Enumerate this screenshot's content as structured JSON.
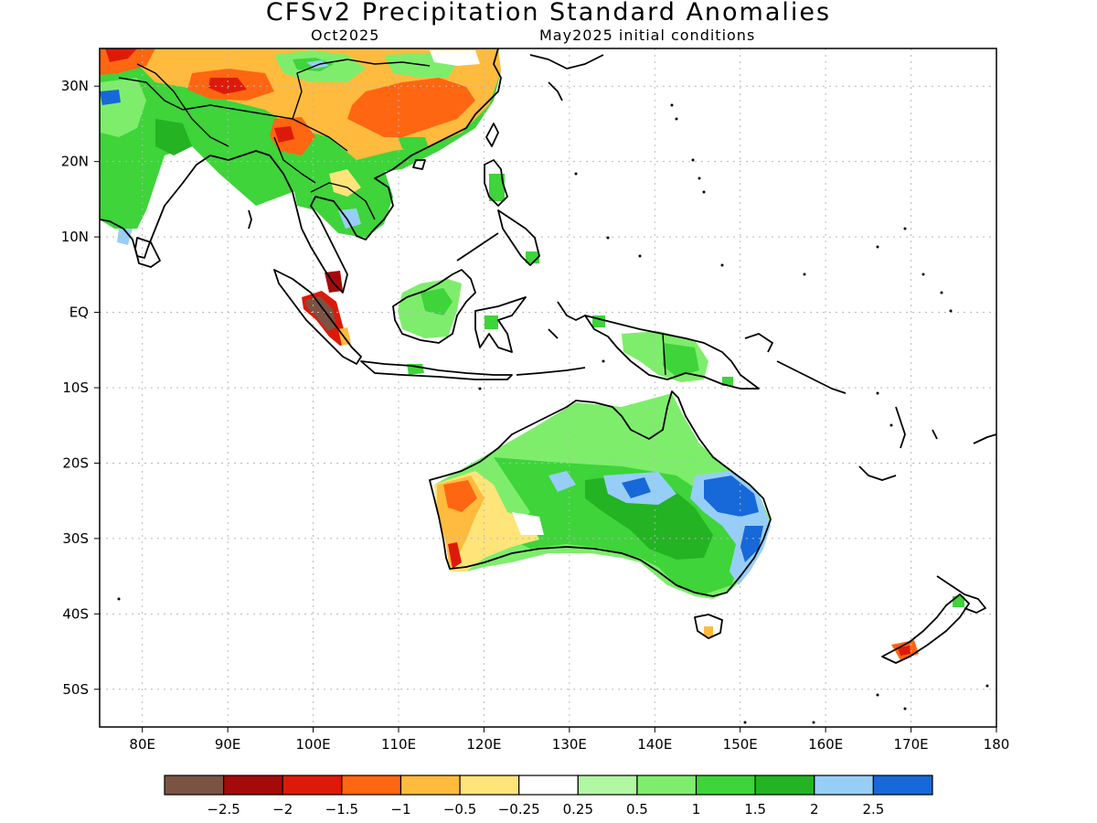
{
  "header": {
    "title": "CFSv2 Precipitation Standard Anomalies",
    "subtitle_left": "Oct2025",
    "subtitle_right": "May2025 initial conditions"
  },
  "map": {
    "lat_labels": [
      {
        "lat": 30,
        "label": "30N"
      },
      {
        "lat": 20,
        "label": "20N"
      },
      {
        "lat": 10,
        "label": "10N"
      },
      {
        "lat": 0,
        "label": "EQ"
      },
      {
        "lat": -10,
        "label": "10S"
      },
      {
        "lat": -20,
        "label": "20S"
      },
      {
        "lat": -30,
        "label": "30S"
      },
      {
        "lat": -40,
        "label": "40S"
      },
      {
        "lat": -50,
        "label": "50S"
      }
    ],
    "lon_labels": [
      {
        "lon": 80,
        "label": "80E"
      },
      {
        "lon": 90,
        "label": "90E"
      },
      {
        "lon": 100,
        "label": "100E"
      },
      {
        "lon": 110,
        "label": "110E"
      },
      {
        "lon": 120,
        "label": "120E"
      },
      {
        "lon": 130,
        "label": "130E"
      },
      {
        "lon": 140,
        "label": "140E"
      },
      {
        "lon": 150,
        "label": "150E"
      },
      {
        "lon": 160,
        "label": "160E"
      },
      {
        "lon": 170,
        "label": "170E"
      },
      {
        "lon": 180,
        "label": "180"
      }
    ],
    "extent": {
      "lon_min": 75,
      "lon_max": 180,
      "lat_min": -55,
      "lat_max": 35
    }
  },
  "legend": {
    "colors": [
      "#7b5343",
      "#a50a0a",
      "#dd1a0a",
      "#ff6612",
      "#ffbb3e",
      "#ffe47a",
      "#ffffff",
      "#b2f7a2",
      "#7eed6c",
      "#3ed43a",
      "#23b323",
      "#97cef8",
      "#1768d8"
    ],
    "labels": [
      "−2.5",
      "−2",
      "−1.5",
      "−1",
      "−0.5",
      "−0.25",
      "0.25",
      "0.5",
      "1",
      "1.5",
      "2",
      "2.5"
    ]
  }
}
